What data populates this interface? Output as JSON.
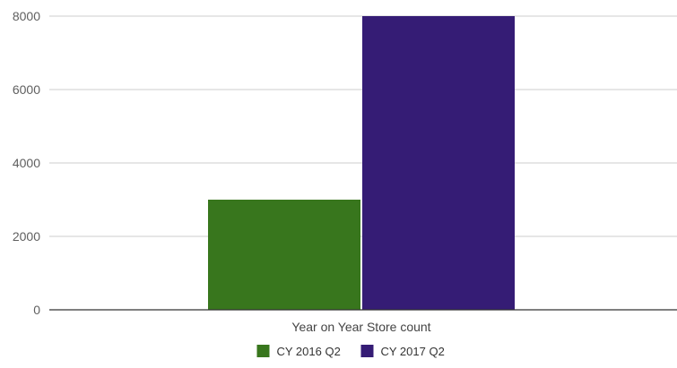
{
  "chart_data": {
    "type": "bar",
    "title": "",
    "xlabel": "",
    "ylabel": "",
    "categories": [
      "Year on Year Store count"
    ],
    "series": [
      {
        "name": "CY 2016 Q2",
        "values": [
          3000
        ],
        "color": "#38761d"
      },
      {
        "name": "CY 2017 Q2",
        "values": [
          8000
        ],
        "color": "#351c75"
      }
    ],
    "ylim": [
      0,
      8000
    ],
    "yticks": [
      0,
      2000,
      4000,
      6000,
      8000
    ],
    "yticks_labels": [
      "0",
      "2000",
      "4000",
      "6000",
      "8000"
    ],
    "grid": true,
    "legend": {
      "position": "bottom",
      "labels": [
        "CY 2016 Q2",
        "CY 2017 Q2"
      ]
    }
  }
}
